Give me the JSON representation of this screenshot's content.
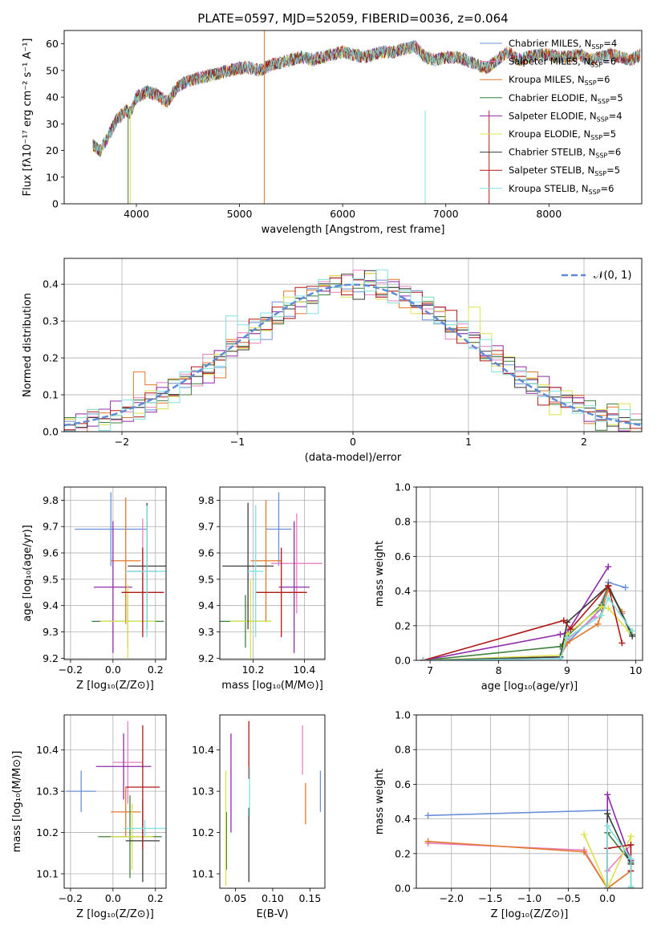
{
  "header": {
    "title": "PLATE=0597, MJD=52059, FIBERID=0036, z=0.064"
  },
  "colors": [
    "#6a8fd8",
    "#e77fc0",
    "#e3772a",
    "#3f7f3f",
    "#8f2aa8",
    "#dce24a",
    "#3a3a3a",
    "#b01818",
    "#7fe0e0"
  ],
  "chart_data": [
    {
      "type": "line",
      "id": "spectrum",
      "xlabel": "wavelength [Angstrom, rest frame]",
      "ylabel": "Flux [fλ10⁻¹⁷ erg cm⁻² s⁻¹ A⁻¹]",
      "xlim": [
        3300,
        8900
      ],
      "ylim": [
        0,
        65
      ],
      "xticks": [
        4000,
        5000,
        6000,
        7000,
        8000
      ],
      "yticks": [
        0,
        10,
        20,
        30,
        40,
        50,
        60
      ],
      "grid": false,
      "legend_position": "top-right",
      "x": [
        3580,
        3650,
        3750,
        3800,
        3900,
        3940,
        4000,
        4100,
        4200,
        4300,
        4400,
        4500,
        4600,
        4700,
        4800,
        4900,
        5000,
        5100,
        5200,
        5300,
        5400,
        5500,
        5600,
        5700,
        5800,
        5900,
        6000,
        6100,
        6200,
        6300,
        6400,
        6500,
        6600,
        6700,
        6800,
        6900,
        7000,
        7100,
        7200,
        7300,
        7400,
        7500,
        7600,
        7700,
        7800,
        7900,
        8000,
        8100,
        8200,
        8300,
        8400,
        8500,
        8600,
        8700,
        8800,
        8890
      ],
      "y": [
        22,
        20,
        27,
        31,
        35,
        34,
        40,
        42,
        41,
        38,
        44,
        46,
        47,
        48,
        49,
        50,
        51,
        51,
        50,
        52,
        53,
        54,
        55,
        54,
        55,
        56,
        57,
        56,
        55,
        56,
        57,
        57,
        58,
        59,
        55,
        54,
        55,
        55,
        54,
        52,
        51,
        54,
        57,
        54,
        55,
        56,
        56,
        55,
        55,
        56,
        54,
        55,
        56,
        55,
        54,
        56
      ],
      "series": [
        {
          "name": "Chabrier MILES, NSSP=4",
          "legend_main": "Chabrier MILES, N",
          "legend_sub": "SSP",
          "legend_tail": "=4"
        },
        {
          "name": "Salpeter MILES, NSSP=6",
          "legend_main": "Salpeter MILES, N",
          "legend_sub": "SSP",
          "legend_tail": "=6"
        },
        {
          "name": "Kroupa MILES, NSSP=6",
          "legend_main": "Kroupa MILES, N",
          "legend_sub": "SSP",
          "legend_tail": "=6"
        },
        {
          "name": "Chabrier ELODIE, NSSP=5",
          "legend_main": "Chabrier ELODIE, N",
          "legend_sub": "SSP",
          "legend_tail": "=5"
        },
        {
          "name": "Salpeter ELODIE, NSSP=4",
          "legend_main": "Salpeter ELODIE, N",
          "legend_sub": "SSP",
          "legend_tail": "=4"
        },
        {
          "name": "Kroupa ELODIE, NSSP=5",
          "legend_main": "Kroupa ELODIE, N",
          "legend_sub": "SSP",
          "legend_tail": "=5"
        },
        {
          "name": "Chabrier STELIB, NSSP=6",
          "legend_main": "Chabrier STELIB, N",
          "legend_sub": "SSP",
          "legend_tail": "=6"
        },
        {
          "name": "Salpeter STELIB, NSSP=5",
          "legend_main": "Salpeter STELIB, N",
          "legend_sub": "SSP",
          "legend_tail": "=5"
        },
        {
          "name": "Kroupa STELIB, NSSP=6",
          "legend_main": "Kroupa STELIB, N",
          "legend_sub": "SSP",
          "legend_tail": "=6"
        }
      ]
    },
    {
      "type": "bar",
      "id": "residual-histogram",
      "xlabel": "(data-model)/error",
      "ylabel": "Normed distribution",
      "xlim": [
        -2.5,
        2.5
      ],
      "ylim": [
        0,
        0.47
      ],
      "xticks": [
        -2,
        -1,
        0,
        1,
        2
      ],
      "xticklabels": [
        "−2",
        "−1",
        "0",
        "1",
        "2"
      ],
      "yticks": [
        0.0,
        0.1,
        0.2,
        0.3,
        0.4
      ],
      "grid": true,
      "legend_position": "top-right",
      "legend": "𝒩(0, 1)",
      "bin_edges": [
        -2.5,
        -2.4,
        -2.3,
        -2.2,
        -2.1,
        -2.0,
        -1.9,
        -1.8,
        -1.7,
        -1.6,
        -1.5,
        -1.4,
        -1.3,
        -1.2,
        -1.1,
        -1.0,
        -0.9,
        -0.8,
        -0.7,
        -0.6,
        -0.5,
        -0.4,
        -0.3,
        -0.2,
        -0.1,
        0.0,
        0.1,
        0.2,
        0.3,
        0.4,
        0.5,
        0.6,
        0.7,
        0.8,
        0.9,
        1.0,
        1.1,
        1.2,
        1.3,
        1.4,
        1.5,
        1.6,
        1.7,
        1.8,
        1.9,
        2.0,
        2.1,
        2.2,
        2.3,
        2.4,
        2.5
      ],
      "reference_density": [
        0.018,
        0.022,
        0.028,
        0.035,
        0.044,
        0.054,
        0.066,
        0.079,
        0.094,
        0.111,
        0.13,
        0.15,
        0.171,
        0.194,
        0.218,
        0.242,
        0.266,
        0.29,
        0.312,
        0.333,
        0.352,
        0.368,
        0.381,
        0.391,
        0.397,
        0.399,
        0.397,
        0.391,
        0.381,
        0.368,
        0.352,
        0.333,
        0.312,
        0.29,
        0.266,
        0.242,
        0.218,
        0.194,
        0.171,
        0.15,
        0.13,
        0.111,
        0.094,
        0.079,
        0.066,
        0.054,
        0.044,
        0.035,
        0.028,
        0.022
      ],
      "series_offsets": [
        [
          0.01,
          -0.01,
          0.02,
          0.0,
          -0.01,
          0.01,
          0.0,
          -0.02,
          0.01,
          0.02,
          -0.01,
          0.0,
          0.01,
          -0.02,
          0.02,
          0.0,
          0.03,
          -0.04,
          0.04,
          -0.02,
          0.01,
          0.02,
          -0.01,
          0.01,
          -0.01,
          -0.02,
          0.01,
          0.02,
          0.0,
          -0.01,
          0.03,
          -0.03,
          -0.02,
          0.01,
          0.0,
          0.02,
          -0.01,
          0.01,
          0.01,
          -0.02,
          0.01,
          0.0,
          0.0,
          -0.01,
          0.01,
          0.0,
          -0.01,
          0.01,
          0.0,
          0.01
        ],
        [
          0.0,
          0.02,
          0.0,
          0.01,
          0.01,
          -0.02,
          0.02,
          0.0,
          -0.01,
          0.01,
          0.02,
          -0.01,
          0.0,
          0.02,
          -0.01,
          0.03,
          -0.01,
          0.02,
          -0.02,
          0.03,
          0.02,
          0.01,
          0.02,
          -0.02,
          0.01,
          0.0,
          -0.02,
          0.0,
          -0.01,
          0.02,
          -0.01,
          0.02,
          0.03,
          -0.02,
          0.01,
          -0.02,
          0.02,
          -0.01,
          0.0,
          0.01,
          -0.03,
          0.02,
          -0.01,
          0.01,
          0.0,
          -0.01,
          0.01,
          0.0,
          -0.01,
          -0.01
        ],
        [
          -0.01,
          0.01,
          -0.01,
          0.0,
          0.02,
          0.0,
          -0.01,
          0.01,
          0.02,
          -0.02,
          0.0,
          0.02,
          -0.02,
          0.0,
          0.01,
          -0.02,
          0.02,
          0.01,
          0.0,
          -0.01,
          0.06,
          0.03,
          -0.01,
          0.02,
          0.0,
          0.01,
          0.01,
          -0.03,
          0.02,
          0.0,
          0.0,
          0.01,
          -0.01,
          0.03,
          -0.02,
          0.01,
          0.0,
          0.02,
          -0.01,
          0.0,
          0.02,
          -0.01,
          0.02,
          -0.02,
          -0.01,
          0.01,
          0.0,
          -0.01,
          0.01,
          0.0
        ]
      ]
    },
    {
      "type": "scatter",
      "id": "age-vs-Z",
      "xlabel": "Z [log₁₀(Z/Z⊙)]",
      "ylabel": "age  [log₁₀(age/yr)]",
      "xlim": [
        -0.23,
        0.25
      ],
      "ylim": [
        9.195,
        9.85
      ],
      "xticks": [
        -0.2,
        0.0,
        0.2
      ],
      "xticklabels": [
        "−0.2",
        "0.0",
        "0.2"
      ],
      "yticks": [
        9.2,
        9.3,
        9.4,
        9.5,
        9.6,
        9.7,
        9.8
      ],
      "grid": true,
      "points": [
        {
          "x": -0.01,
          "y": 9.69,
          "xerr": 0.17,
          "yerr": 0.14
        },
        {
          "x": 0.14,
          "y": 9.53,
          "xerr": 0.07,
          "yerr": 0.2
        },
        {
          "x": 0.06,
          "y": 9.57,
          "xerr": 0.07,
          "yerr": 0.24
        },
        {
          "x": 0.07,
          "y": 9.34,
          "xerr": 0.17,
          "yerr": 0.1
        },
        {
          "x": 0.0,
          "y": 9.47,
          "xerr": 0.09,
          "yerr": 0.25
        },
        {
          "x": 0.07,
          "y": 9.34,
          "xerr": 0.13,
          "yerr": 0.14
        },
        {
          "x": 0.16,
          "y": 9.55,
          "xerr": 0.09,
          "yerr": 0.24
        },
        {
          "x": 0.14,
          "y": 9.45,
          "xerr": 0.1,
          "yerr": 0.17
        },
        {
          "x": 0.16,
          "y": 9.53,
          "xerr": 0.1,
          "yerr": 0.25
        }
      ]
    },
    {
      "type": "scatter",
      "id": "age-vs-mass",
      "xlabel": "mass [log₁₀(M/M⊙)]",
      "ylabel": "",
      "xlim": [
        10.07,
        10.48
      ],
      "ylim": [
        9.195,
        9.85
      ],
      "xticks": [
        10.2,
        10.4
      ],
      "yticks": [
        9.2,
        9.3,
        9.4,
        9.5,
        9.6,
        9.7,
        9.8
      ],
      "grid": true,
      "points": [
        {
          "x": 10.3,
          "y": 9.69,
          "xerr": 0.05,
          "yerr": 0.14
        },
        {
          "x": 10.37,
          "y": 9.56,
          "xerr": 0.1,
          "yerr": 0.19
        },
        {
          "x": 10.25,
          "y": 9.57,
          "xerr": 0.06,
          "yerr": 0.23
        },
        {
          "x": 10.17,
          "y": 9.34,
          "xerr": 0.1,
          "yerr": 0.1
        },
        {
          "x": 10.36,
          "y": 9.47,
          "xerr": 0.06,
          "yerr": 0.25
        },
        {
          "x": 10.19,
          "y": 9.34,
          "xerr": 0.08,
          "yerr": 0.16
        },
        {
          "x": 10.18,
          "y": 9.55,
          "xerr": 0.1,
          "yerr": 0.24
        },
        {
          "x": 10.31,
          "y": 9.45,
          "xerr": 0.1,
          "yerr": 0.17
        },
        {
          "x": 10.21,
          "y": 9.53,
          "xerr": 0.03,
          "yerr": 0.25
        }
      ]
    },
    {
      "type": "line",
      "id": "massweight-vs-age",
      "xlabel": "age  [log₁₀(age/yr)]",
      "ylabel": "mass weight",
      "xlim": [
        6.8,
        10.1
      ],
      "ylim": [
        0,
        1
      ],
      "xticks": [
        7,
        8,
        9,
        10
      ],
      "yticks": [
        0.0,
        0.2,
        0.4,
        0.6,
        0.8,
        1.0
      ],
      "grid": true,
      "series": [
        {
          "x": [
            6.9,
            8.9,
            9.0,
            9.5,
            9.6,
            9.85
          ],
          "y": [
            0,
            0.02,
            0.1,
            0.3,
            0.45,
            0.42
          ]
        },
        {
          "x": [
            6.9,
            8.9,
            9.0,
            9.4,
            9.6,
            9.8
          ],
          "y": [
            0,
            0.01,
            0.12,
            0.25,
            0.43,
            0.27
          ]
        },
        {
          "x": [
            6.9,
            8.9,
            9.0,
            9.45,
            9.6,
            9.8
          ],
          "y": [
            0,
            0.02,
            0.1,
            0.21,
            0.41,
            0.28
          ]
        },
        {
          "x": [
            6.9,
            8.9,
            9.0,
            9.5,
            9.6,
            9.95
          ],
          "y": [
            0,
            0.08,
            0.14,
            0.32,
            0.43,
            0.15
          ]
        },
        {
          "x": [
            6.9,
            8.9,
            9.0,
            9.6
          ],
          "y": [
            0,
            0.15,
            0.16,
            0.54
          ]
        },
        {
          "x": [
            6.9,
            8.9,
            9.0,
            9.5,
            9.6,
            9.9
          ],
          "y": [
            0,
            0.03,
            0.15,
            0.31,
            0.3,
            0.17
          ]
        },
        {
          "x": [
            6.9,
            8.9,
            9.0,
            9.6,
            9.95
          ],
          "y": [
            0,
            0.02,
            0.22,
            0.43,
            0.14
          ]
        },
        {
          "x": [
            6.9,
            8.95,
            9.05,
            9.6,
            9.8
          ],
          "y": [
            0,
            0.23,
            0.18,
            0.43,
            0.1
          ]
        },
        {
          "x": [
            6.9,
            8.9,
            9.0,
            9.5,
            9.6,
            9.95
          ],
          "y": [
            0,
            0.01,
            0.13,
            0.26,
            0.36,
            0.17
          ]
        }
      ]
    },
    {
      "type": "scatter",
      "id": "mass-vs-Z",
      "xlabel": "Z [log₁₀(Z/Z⊙)]",
      "ylabel": "mass [log₁₀(M/M⊙)]",
      "xlim": [
        -0.23,
        0.25
      ],
      "ylim": [
        10.065,
        10.485
      ],
      "xticks": [
        -0.2,
        0.0,
        0.2
      ],
      "xticklabels": [
        "−0.2",
        "0.0",
        "0.2"
      ],
      "yticks": [
        10.1,
        10.2,
        10.3,
        10.4
      ],
      "grid": true,
      "points": [
        {
          "x": -0.15,
          "y": 10.3,
          "xerr": 0.07,
          "yerr": 0.05
        },
        {
          "x": 0.07,
          "y": 10.37,
          "xerr": 0.07,
          "yerr": 0.1
        },
        {
          "x": 0.06,
          "y": 10.25,
          "xerr": 0.07,
          "yerr": 0.06
        },
        {
          "x": 0.08,
          "y": 10.19,
          "xerr": 0.15,
          "yerr": 0.1
        },
        {
          "x": 0.05,
          "y": 10.36,
          "xerr": 0.13,
          "yerr": 0.08
        },
        {
          "x": 0.09,
          "y": 10.19,
          "xerr": 0.1,
          "yerr": 0.08
        },
        {
          "x": 0.14,
          "y": 10.18,
          "xerr": 0.08,
          "yerr": 0.1
        },
        {
          "x": 0.14,
          "y": 10.31,
          "xerr": 0.08,
          "yerr": 0.15
        },
        {
          "x": 0.15,
          "y": 10.21,
          "xerr": 0.1,
          "yerr": 0.02
        }
      ]
    },
    {
      "type": "scatter",
      "id": "mass-vs-EBV",
      "xlabel": "E(B-V)",
      "ylabel": "",
      "xlim": [
        0.029,
        0.17
      ],
      "ylim": [
        10.065,
        10.485
      ],
      "xticks": [
        0.05,
        0.1,
        0.15
      ],
      "xticklabels": [
        "0.05",
        "0.10",
        "0.15"
      ],
      "yticks": [
        10.1,
        10.2,
        10.3,
        10.4
      ],
      "grid": false,
      "points": [
        {
          "x": 0.164,
          "y": 10.3,
          "yerr": 0.05
        },
        {
          "x": 0.14,
          "y": 10.4,
          "yerr": 0.06
        },
        {
          "x": 0.144,
          "y": 10.27,
          "yerr": 0.05
        },
        {
          "x": 0.038,
          "y": 10.18,
          "yerr": 0.07
        },
        {
          "x": 0.044,
          "y": 10.32,
          "yerr": 0.12
        },
        {
          "x": 0.037,
          "y": 10.21,
          "yerr": 0.14
        },
        {
          "x": 0.068,
          "y": 10.17,
          "yerr": 0.09
        },
        {
          "x": 0.068,
          "y": 10.4,
          "yerr": 0.07
        },
        {
          "x": 0.069,
          "y": 10.3,
          "yerr": 0.06
        }
      ]
    },
    {
      "type": "line",
      "id": "massweight-vs-Z",
      "xlabel": "Z [log₁₀(Z/Z⊙)]",
      "ylabel": "mass weight",
      "xlim": [
        -2.45,
        0.45
      ],
      "ylim": [
        0,
        1
      ],
      "xticks": [
        -2.0,
        -1.5,
        -1.0,
        -0.5,
        0.0
      ],
      "xticklabels": [
        "−2.0",
        "−1.5",
        "−1.0",
        "−0.5",
        "0.0"
      ],
      "yticks": [
        0.0,
        0.2,
        0.4,
        0.6,
        0.8,
        1.0
      ],
      "grid": true,
      "series": [
        {
          "x": [
            -2.3,
            0.0,
            0.0,
            0.3
          ],
          "y": [
            0.42,
            0.45,
            0.0,
            0.1
          ]
        },
        {
          "x": [
            -2.3,
            -0.3,
            0.0,
            0.0,
            0.3
          ],
          "y": [
            0.26,
            0.22,
            0.0,
            0.1,
            0.25
          ]
        },
        {
          "x": [
            -2.3,
            -0.3,
            0.0,
            0.3
          ],
          "y": [
            0.27,
            0.21,
            0.0,
            0.1
          ]
        },
        {
          "x": [
            0.0,
            0.0,
            0.3,
            0.3
          ],
          "y": [
            0.0,
            0.32,
            0.15,
            0.0
          ]
        },
        {
          "x": [
            0.0,
            0.0,
            0.3
          ],
          "y": [
            0.0,
            0.54,
            0.16
          ]
        },
        {
          "x": [
            -0.3,
            0.0,
            0.3,
            0.3
          ],
          "y": [
            0.31,
            0.0,
            0.3,
            0.17
          ]
        },
        {
          "x": [
            0.0,
            0.0,
            0.3
          ],
          "y": [
            0.0,
            0.43,
            0.14
          ]
        },
        {
          "x": [
            0.0,
            0.0,
            0.3,
            0.3
          ],
          "y": [
            0.0,
            0.23,
            0.25,
            0.1
          ]
        },
        {
          "x": [
            0.0,
            0.0,
            0.3,
            0.3
          ],
          "y": [
            0.0,
            0.36,
            0.17,
            0.01
          ]
        }
      ]
    }
  ]
}
